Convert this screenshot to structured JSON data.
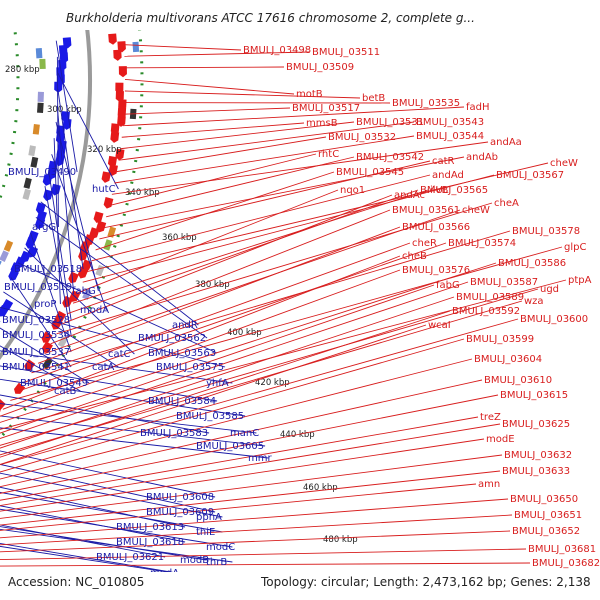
{
  "title": "Burkholderia multivorans ATCC 17616 chromosome 2, complete g...",
  "footer": {
    "accession": "Accession: NC_010805",
    "topology": "Topology: circular; Length: 2,473,162 bp; Genes: 2,138"
  },
  "colors": {
    "forward_gene": "#1a1ae6",
    "reverse_gene": "#e61a1a",
    "forward_label": "#1a1aa6",
    "reverse_label": "#d81e1e",
    "backbone": "#9a9a9a",
    "dotted_ring": "#2a8a2a"
  },
  "kbp_ticks": [
    "280 kbp",
    "300 kbp",
    "320 kbp",
    "340 kbp",
    "360 kbp",
    "380 kbp",
    "400 kbp",
    "420 kbp",
    "440 kbp",
    "460 kbp",
    "480 kbp"
  ],
  "forward_labels": [
    "BMULJ_03490",
    "argG",
    "hutC",
    "BMULJ_03518",
    "BMULJ_03519",
    "fabG",
    "proP",
    "modA",
    "BMULJ_03528",
    "BMULJ_03534",
    "andR",
    "BMULJ_03562",
    "BMULJ_03537",
    "catC",
    "BMULJ_03563",
    "BMULJ_03541",
    "catA",
    "BMULJ_03575",
    "BMULJ_03549",
    "catB",
    "yhfA",
    "BMULJ_03584",
    "BMULJ_03585",
    "BMULJ_03583",
    "manC",
    "BMULJ_03605",
    "mmr",
    "BMULJ_03608",
    "BMULJ_03609",
    "pphA",
    "BMULJ_03613",
    "thiE",
    "BMULJ_03618",
    "modC",
    "BMULJ_03621",
    "modB",
    "thrB",
    "modA",
    "BMULJ_03642"
  ],
  "reverse_labels": [
    "BMULJ_03498",
    "BMULJ_03511",
    "BMULJ_03509",
    "motB",
    "betB",
    "BMULJ_03535",
    "BMULJ_03517",
    "fadH",
    "mmsB",
    "BMULJ_03531",
    "BMULJ_03543",
    "BMULJ_03532",
    "BMULJ_03544",
    "andAa",
    "rhtC",
    "BMULJ_03542",
    "andAb",
    "catR",
    "BMULJ_03545",
    "andAd",
    "cheW",
    "BMULJ_03567",
    "nqo1",
    "ilvB",
    "BMULJ_03565",
    "andAc",
    "cheA",
    "BMULJ_03561",
    "cheW",
    "BMULJ_03566",
    "BMULJ_03578",
    "cheR",
    "BMULJ_03574",
    "glpC",
    "cheB",
    "BMULJ_03576",
    "BMULJ_03586",
    "ptpA",
    "fabG",
    "BMULJ_03587",
    "ugd",
    "BMULJ_03589",
    "wza",
    "BMULJ_03592",
    "BMULJ_03600",
    "wcaI",
    "BMULJ_03599",
    "BMULJ_03604",
    "BMULJ_03610",
    "BMULJ_03615",
    "treZ",
    "BMULJ_03625",
    "modE",
    "BMULJ_03632",
    "BMULJ_03633",
    "amn",
    "BMULJ_03650",
    "BMULJ_03651",
    "BMULJ_03652",
    "BMULJ_03681",
    "BMULJ_03682"
  ]
}
